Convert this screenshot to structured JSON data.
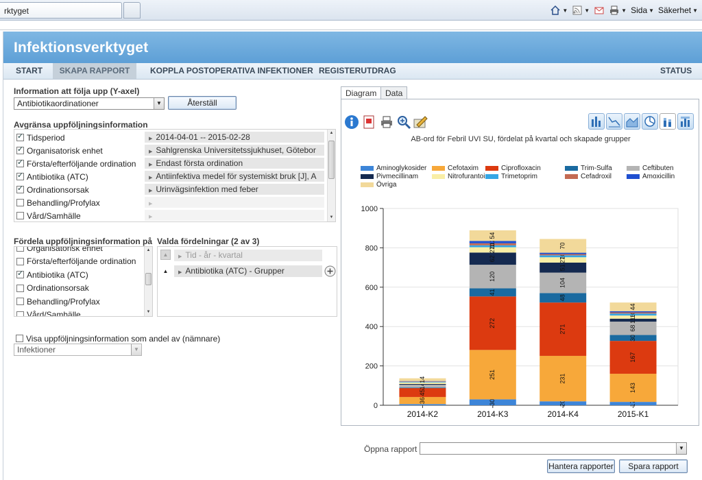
{
  "browser": {
    "tab_title": "rktyget",
    "tools": {
      "page": "Sida",
      "safety": "Säkerhet"
    }
  },
  "app": {
    "title": "Infektionsverktyget",
    "nav": [
      {
        "label": "START"
      },
      {
        "label": "SKAPA RAPPORT"
      },
      {
        "label": "KOPPLA POSTOPERATIVA INFEKTIONER"
      },
      {
        "label": "REGISTERUTDRAG"
      },
      {
        "label": "STATUS"
      }
    ]
  },
  "yaxis": {
    "title": "Information att följa upp (Y-axel)",
    "selected": "Antibiotikaordinationer",
    "reset_label": "Återställ"
  },
  "limit": {
    "title": "Avgränsa uppföljningsinformation",
    "items": [
      {
        "label": "Tidsperiod",
        "checked": true
      },
      {
        "label": "Organisatorisk enhet",
        "checked": true
      },
      {
        "label": "Första/efterföljande ordination",
        "checked": true
      },
      {
        "label": "Antibiotika (ATC)",
        "checked": true
      },
      {
        "label": "Ordinationsorsak",
        "checked": true
      },
      {
        "label": "Behandling/Profylax",
        "checked": false
      },
      {
        "label": "Vård/Samhälle",
        "checked": false
      }
    ],
    "values": [
      "2014-04-01 -- 2015-02-28",
      "Sahlgrenska Universitetssjukhuset, Götebor",
      "Endast första ordination",
      "Antiinfektiva medel för systemiskt bruk [J], A",
      "Urinvägsinfektion med feber",
      "",
      ""
    ]
  },
  "distribute": {
    "title": "Fördela uppföljningsinformation på",
    "items": [
      {
        "label": "Organisatorisk enhet",
        "checked": false
      },
      {
        "label": "Första/efterföljande ordination",
        "checked": false
      },
      {
        "label": "Antibiotika (ATC)",
        "checked": true
      },
      {
        "label": "Ordinationsorsak",
        "checked": false
      },
      {
        "label": "Behandling/Profylax",
        "checked": false
      },
      {
        "label": "Vård/Samhälle",
        "checked": false
      }
    ],
    "selected_title": "Valda fördelningar (2 av 3)",
    "selected": [
      "Tid - år - kvartal",
      "Antibiotika (ATC) - Grupper"
    ]
  },
  "share": {
    "label": "Visa uppföljningsinformation som andel av (nämnare)",
    "checked": false,
    "select_value": "Infektioner"
  },
  "chart_tabs": [
    {
      "label": "Diagram"
    },
    {
      "label": "Data"
    }
  ],
  "footer": {
    "open_label": "Öppna rapport",
    "open_value": "",
    "manage_label": "Hantera rapporter",
    "save_label": "Spara rapport"
  },
  "colors": {
    "header": "#6aa8dc",
    "Aminoglykosider": "#3d85d8",
    "Cefotaxim": "#f7a83a",
    "Ciprofloxacin": "#dc3a10",
    "Trim-Sulfa": "#1a6aa0",
    "Ceftibuten": "#b4b4b4",
    "Pivmecillinam": "#152a50",
    "Nitrofurantoin": "#f9eea6",
    "Trimetoprim": "#36a6e4",
    "Cefadroxil": "#c46a52",
    "Amoxicillin": "#1f4fd0",
    "Övriga": "#f2d99a"
  },
  "chart_data": {
    "type": "bar",
    "stacked": true,
    "title": "AB-ord för Febril UVI SU, fördelat på kvartal och skapade grupper",
    "categories": [
      "2014-K2",
      "2014-K3",
      "2014-K4",
      "2015-K1"
    ],
    "ylim": [
      0,
      1000
    ],
    "yticks": [
      0,
      200,
      400,
      600,
      800,
      1000
    ],
    "legend_position": "top",
    "series": [
      {
        "name": "Aminoglykosider",
        "values": [
          6,
          30,
          20,
          17
        ]
      },
      {
        "name": "Cefotaxim",
        "values": [
          36,
          251,
          231,
          143
        ]
      },
      {
        "name": "Ciprofloxacin",
        "values": [
          45,
          272,
          271,
          167
        ]
      },
      {
        "name": "Trim-Sulfa",
        "values": [
          3,
          41,
          48,
          30
        ]
      },
      {
        "name": "Ceftibuten",
        "values": [
          14,
          120,
          104,
          68
        ]
      },
      {
        "name": "Pivmecillinam",
        "values": [
          4,
          62,
          51,
          15
        ]
      },
      {
        "name": "Nitrofurantoin",
        "values": [
          8,
          27,
          27,
          16
        ]
      },
      {
        "name": "Trimetoprim",
        "values": [
          3,
          10,
          10,
          10
        ]
      },
      {
        "name": "Cefadroxil",
        "values": [
          2,
          10,
          6,
          6
        ]
      },
      {
        "name": "Amoxicillin",
        "values": [
          2,
          12,
          7,
          6
        ]
      },
      {
        "name": "Övriga",
        "values": [
          14,
          54,
          70,
          44
        ]
      }
    ]
  }
}
